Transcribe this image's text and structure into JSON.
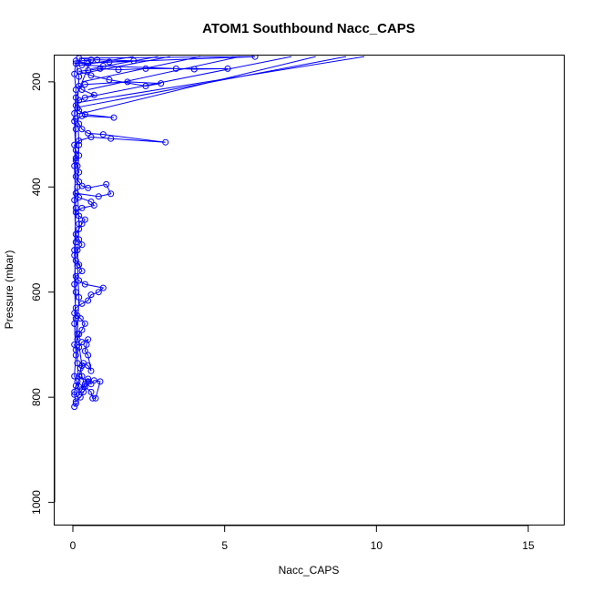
{
  "chart_data": {
    "type": "scatter",
    "title": "ATOM1 Southbound Nacc_CAPS",
    "xlabel": "Nacc_CAPS",
    "ylabel": "Pressure (mbar)",
    "xlim": [
      -0.6,
      16.2
    ],
    "ylim": [
      1044,
      150
    ],
    "y_reversed": true,
    "x_ticks": [
      0,
      5,
      10,
      15
    ],
    "y_ticks": [
      200,
      400,
      600,
      800,
      1000
    ],
    "grid": false,
    "legend": "none",
    "point_style": "open-circle",
    "connected": true,
    "series": [
      {
        "color": "#0000ff",
        "points": [
          [
            0.05,
            818
          ],
          [
            0.1,
            812
          ],
          [
            0.05,
            790
          ],
          [
            0.1,
            778
          ],
          [
            0.15,
            770
          ],
          [
            0.2,
            795
          ],
          [
            0.3,
            785
          ],
          [
            0.4,
            775
          ],
          [
            0.5,
            765
          ],
          [
            0.6,
            775
          ],
          [
            0.7,
            768
          ],
          [
            0.9,
            770
          ],
          [
            0.75,
            802
          ],
          [
            0.65,
            802
          ],
          [
            0.6,
            790
          ],
          [
            0.4,
            780
          ],
          [
            0.3,
            760
          ],
          [
            0.25,
            745
          ],
          [
            0.35,
            735
          ],
          [
            0.5,
            740
          ],
          [
            0.6,
            750
          ],
          [
            0.5,
            720
          ],
          [
            0.4,
            712
          ],
          [
            0.45,
            700
          ],
          [
            0.5,
            690
          ],
          [
            0.3,
            695
          ],
          [
            0.2,
            705
          ],
          [
            0.1,
            710
          ],
          [
            0.05,
            700
          ],
          [
            0.15,
            690
          ],
          [
            0.2,
            680
          ],
          [
            0.3,
            672
          ],
          [
            0.4,
            660
          ],
          [
            0.25,
            650
          ],
          [
            0.15,
            645
          ],
          [
            0.05,
            640
          ],
          [
            0.1,
            630
          ],
          [
            0.3,
            622
          ],
          [
            0.5,
            616
          ],
          [
            0.6,
            605
          ],
          [
            0.85,
            600
          ],
          [
            1.0,
            592
          ],
          [
            0.4,
            585
          ],
          [
            0.2,
            578
          ],
          [
            0.1,
            570
          ],
          [
            0.3,
            560
          ],
          [
            0.2,
            548
          ],
          [
            0.1,
            540
          ],
          [
            0.05,
            530
          ],
          [
            0.15,
            520
          ],
          [
            0.3,
            510
          ],
          [
            0.2,
            500
          ],
          [
            0.1,
            490
          ],
          [
            0.2,
            480
          ],
          [
            0.3,
            470
          ],
          [
            0.4,
            462
          ],
          [
            0.2,
            455
          ],
          [
            0.1,
            448
          ],
          [
            0.3,
            440
          ],
          [
            0.7,
            435
          ],
          [
            0.6,
            428
          ],
          [
            0.2,
            420
          ],
          [
            0.1,
            412
          ],
          [
            0.85,
            418
          ],
          [
            1.25,
            413
          ],
          [
            1.1,
            395
          ],
          [
            0.5,
            402
          ],
          [
            0.3,
            398
          ],
          [
            0.2,
            390
          ],
          [
            0.1,
            380
          ],
          [
            0.2,
            372
          ],
          [
            0.15,
            360
          ],
          [
            0.1,
            350
          ],
          [
            0.2,
            340
          ],
          [
            0.1,
            330
          ],
          [
            0.05,
            320
          ],
          [
            0.2,
            312
          ],
          [
            0.6,
            305
          ],
          [
            1.25,
            308
          ],
          [
            3.05,
            315
          ],
          [
            1.0,
            300
          ],
          [
            0.5,
            298
          ],
          [
            0.3,
            290
          ],
          [
            0.2,
            280
          ],
          [
            0.1,
            270
          ],
          [
            0.3,
            265
          ],
          [
            1.35,
            268
          ],
          [
            0.4,
            262
          ],
          [
            0.2,
            255
          ],
          [
            0.1,
            245
          ],
          [
            0.2,
            235
          ],
          [
            0.4,
            230
          ],
          [
            0.7,
            225
          ],
          [
            0.3,
            215
          ],
          [
            0.2,
            208
          ],
          [
            0.4,
            205
          ],
          [
            1.8,
            200
          ],
          [
            2.9,
            203
          ],
          [
            2.4,
            208
          ],
          [
            1.2,
            196
          ],
          [
            0.6,
            188
          ],
          [
            0.2,
            180
          ],
          [
            0.5,
            178
          ],
          [
            0.9,
            175
          ],
          [
            1.5,
            177
          ],
          [
            2.4,
            175
          ],
          [
            3.4,
            175
          ],
          [
            5.1,
            175
          ],
          [
            4.0,
            176
          ],
          [
            1.0,
            170
          ],
          [
            0.3,
            168
          ],
          [
            0.5,
            165
          ],
          [
            1.2,
            162
          ],
          [
            2.0,
            160
          ],
          [
            0.8,
            158
          ],
          [
            0.3,
            160
          ],
          [
            0.1,
            165
          ],
          [
            6.0,
            152
          ],
          [
            0.2,
            155
          ],
          [
            0.6,
            158
          ],
          [
            0.1,
            230
          ],
          [
            0.05,
            260
          ],
          [
            0.1,
            290
          ],
          [
            0.05,
            360
          ],
          [
            0.1,
            440
          ],
          [
            0.05,
            520
          ],
          [
            0.1,
            600
          ],
          [
            0.05,
            660
          ],
          [
            0.1,
            720
          ],
          [
            0.05,
            760
          ],
          [
            0.2,
            780
          ],
          [
            0.15,
            735
          ],
          [
            0.1,
            650
          ],
          [
            0.05,
            585
          ],
          [
            0.1,
            505
          ],
          [
            0.05,
            425
          ],
          [
            0.1,
            345
          ],
          [
            0.05,
            275
          ],
          [
            0.1,
            215
          ],
          [
            0.05,
            185
          ],
          [
            0.1,
            160
          ],
          [
            0.2,
            190
          ],
          [
            0.15,
            250
          ],
          [
            0.2,
            320
          ],
          [
            0.15,
            400
          ],
          [
            0.2,
            470
          ],
          [
            0.15,
            550
          ],
          [
            0.2,
            610
          ],
          [
            0.15,
            680
          ],
          [
            0.3,
            740
          ],
          [
            0.2,
            760
          ],
          [
            0.5,
            770
          ],
          [
            0.35,
            790
          ],
          [
            0.25,
            800
          ],
          [
            0.1,
            808
          ],
          [
            0.05,
            795
          ]
        ],
        "overflow_segments": [
          [
            [
              0.3,
              260
            ],
            [
              8.0,
              152
            ]
          ],
          [
            [
              0.2,
              248
            ],
            [
              9.0,
              152
            ]
          ],
          [
            [
              0.1,
              240
            ],
            [
              9.6,
              152
            ]
          ],
          [
            [
              0.4,
              230
            ],
            [
              7.2,
              152
            ]
          ],
          [
            [
              0.5,
              215
            ],
            [
              5.5,
              152
            ]
          ],
          [
            [
              0.3,
              200
            ],
            [
              4.2,
              152
            ]
          ],
          [
            [
              0.2,
              185
            ],
            [
              3.2,
              152
            ]
          ],
          [
            [
              0.6,
              175
            ],
            [
              2.8,
              152
            ]
          ],
          [
            [
              0.1,
              170
            ],
            [
              2.0,
              152
            ]
          ]
        ]
      }
    ]
  }
}
